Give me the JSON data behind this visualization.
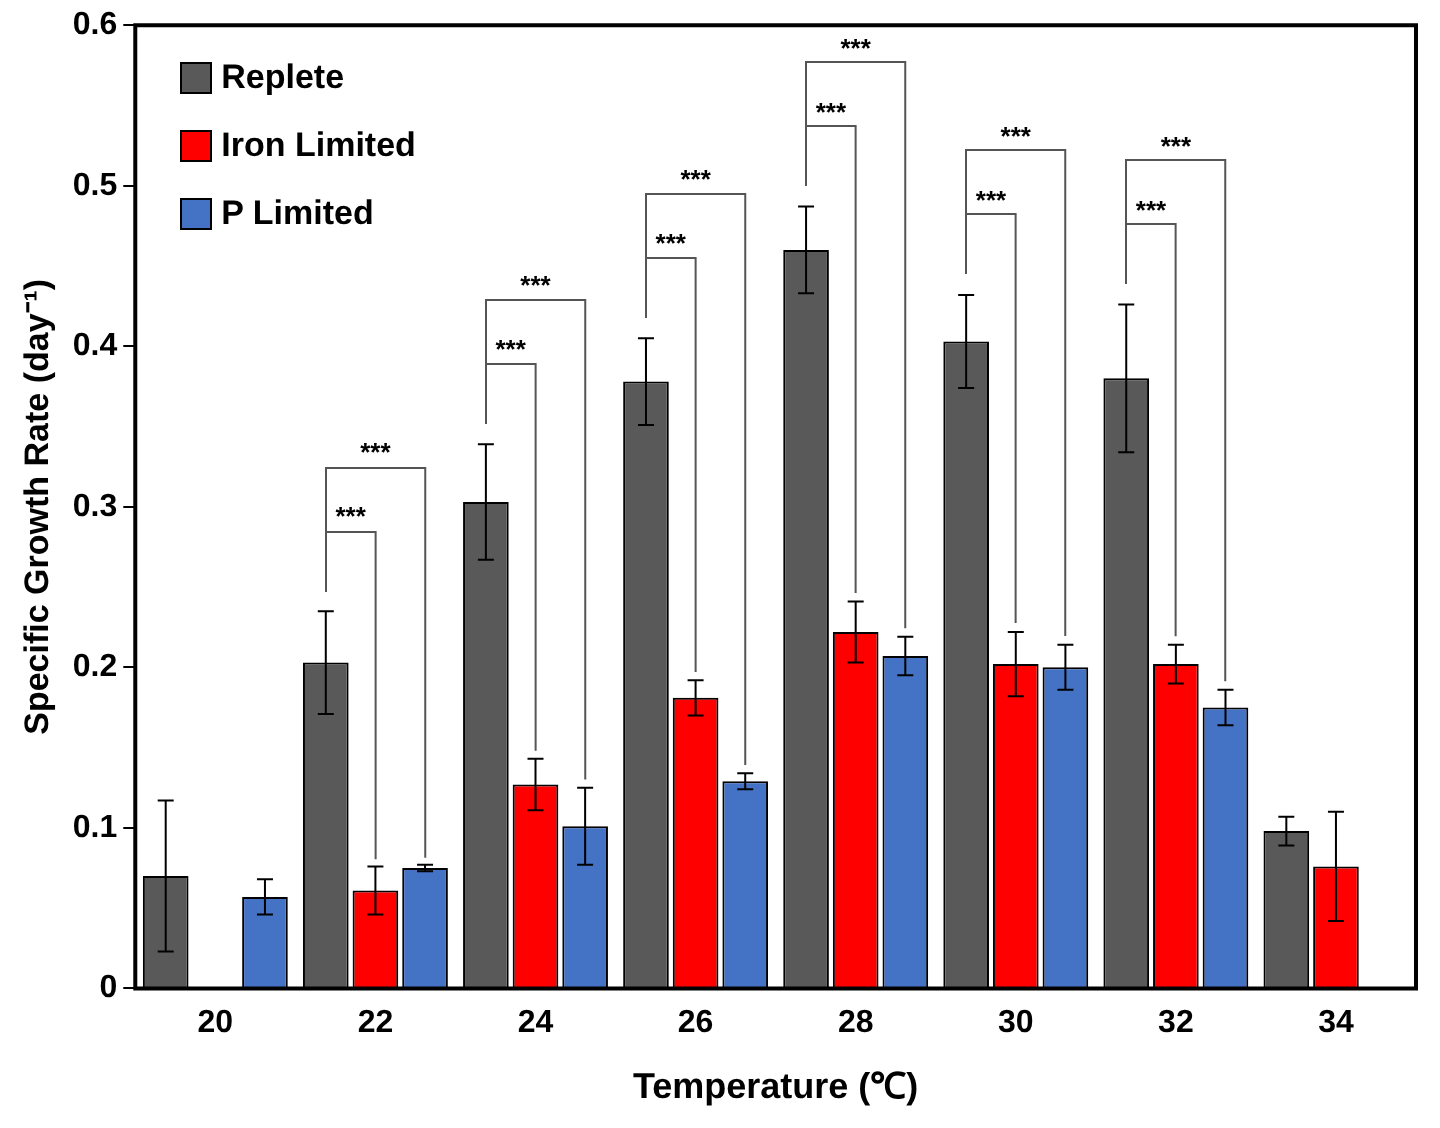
{
  "chart_data": {
    "type": "bar",
    "categories": [
      "20",
      "22",
      "24",
      "26",
      "28",
      "30",
      "32",
      "34"
    ],
    "xlabel": "Temperature (℃)",
    "ylabel": "Specific Growth Rate (day⁻¹)",
    "series": [
      {
        "name": "Replete",
        "color": "#595959",
        "values": [
          0.07,
          0.203,
          0.303,
          0.378,
          0.46,
          0.403,
          0.38,
          0.098
        ],
        "errors": [
          0.047,
          0.032,
          0.036,
          0.027,
          0.027,
          0.029,
          0.046,
          0.009
        ]
      },
      {
        "name": "Iron Limited",
        "color": "#ff0000",
        "values": [
          null,
          0.061,
          0.127,
          0.181,
          0.222,
          0.202,
          0.202,
          0.076
        ],
        "errors": [
          null,
          0.015,
          0.016,
          0.011,
          0.019,
          0.02,
          0.012,
          0.034
        ]
      },
      {
        "name": "P Limited",
        "color": "#4472c4",
        "values": [
          0.057,
          0.075,
          0.101,
          0.129,
          0.207,
          0.2,
          0.175,
          null
        ],
        "errors": [
          0.011,
          0.002,
          0.024,
          0.005,
          0.012,
          0.014,
          0.011,
          null
        ]
      }
    ],
    "annotations": [
      "***",
      "***",
      "***",
      "***",
      "***",
      "***",
      "***",
      "***",
      "***",
      "***",
      "***",
      "***"
    ],
    "ylim": [
      0,
      0.6
    ],
    "yticks": [
      0,
      0.1,
      0.2,
      0.3,
      0.4,
      0.5,
      0.6
    ],
    "legend": "top left"
  }
}
